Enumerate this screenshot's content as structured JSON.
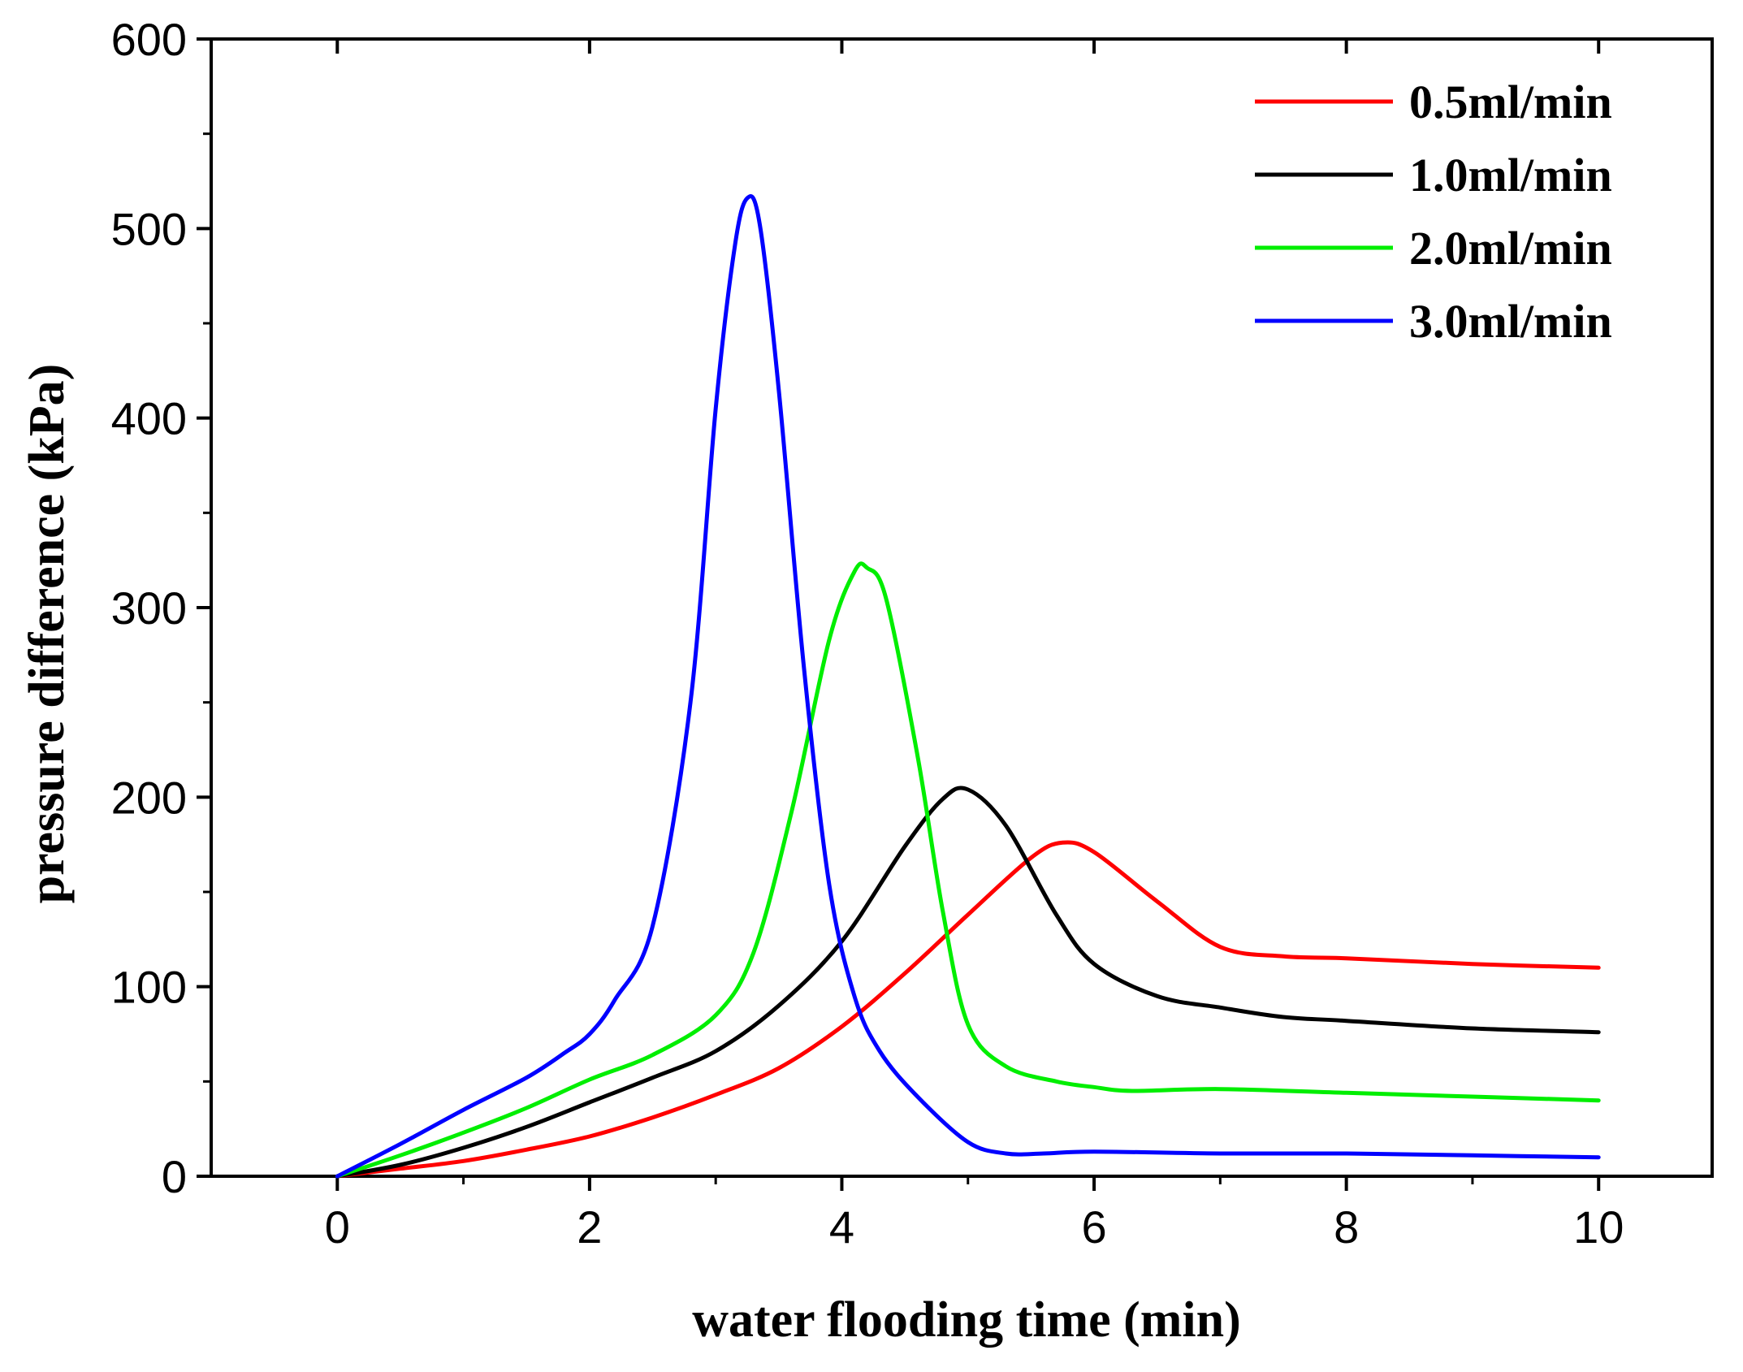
{
  "chart_data": {
    "type": "line",
    "title": "",
    "xlabel": "water flooding time (min)",
    "ylabel": "pressure difference (kPa)",
    "xlim": [
      -1,
      10.9
    ],
    "ylim": [
      0,
      600
    ],
    "xticks": [
      0,
      2,
      4,
      6,
      8,
      10
    ],
    "yticks": [
      0,
      100,
      200,
      300,
      400,
      500,
      600
    ],
    "xtick_labels": [
      "0",
      "2",
      "4",
      "6",
      "8",
      "10"
    ],
    "ytick_labels": [
      "0",
      "100",
      "200",
      "300",
      "400",
      "500",
      "600"
    ],
    "grid": false,
    "legend_position": "top-right",
    "series": [
      {
        "name": "0.5ml/min",
        "color": "#ff0000",
        "x": [
          0,
          0.5,
          1,
          1.5,
          2,
          2.5,
          3,
          3.5,
          4,
          4.5,
          5,
          5.5,
          5.75,
          6,
          6.5,
          7,
          7.5,
          8,
          9,
          10
        ],
        "y": [
          0,
          4,
          8,
          14,
          21,
          31,
          43,
          57,
          79,
          107,
          138,
          168,
          176,
          171,
          145,
          121,
          116,
          115,
          112,
          110
        ]
      },
      {
        "name": "1.0ml/min",
        "color": "#000000",
        "x": [
          0,
          0.5,
          1,
          1.5,
          2,
          2.5,
          3,
          3.5,
          4,
          4.5,
          4.8,
          5,
          5.3,
          5.7,
          6,
          6.5,
          7,
          7.5,
          8,
          9,
          10
        ],
        "y": [
          0,
          6,
          15,
          26,
          39,
          52,
          66,
          90,
          124,
          174,
          199,
          204,
          185,
          138,
          112,
          95,
          89,
          84,
          82,
          78,
          76
        ]
      },
      {
        "name": "2.0ml/min",
        "color": "#00ee00",
        "x": [
          0,
          0.5,
          1,
          1.5,
          2,
          2.5,
          3,
          3.3,
          3.6,
          3.9,
          4.1,
          4.2,
          4.35,
          4.6,
          4.8,
          5,
          5.3,
          5.7,
          6,
          6.3,
          7,
          8,
          9,
          10
        ],
        "y": [
          0,
          11,
          23,
          36,
          51,
          64,
          85,
          118,
          192,
          283,
          319,
          321,
          305,
          222,
          140,
          80,
          58,
          50,
          47,
          45,
          46,
          44,
          42,
          40
        ]
      },
      {
        "name": "3.0ml/min",
        "color": "#0000ff",
        "x": [
          0,
          0.5,
          1,
          1.5,
          1.8,
          2,
          2.2,
          2.5,
          2.8,
          3.0,
          3.15,
          3.25,
          3.35,
          3.5,
          3.7,
          3.9,
          4.1,
          4.3,
          4.6,
          5,
          5.3,
          5.6,
          6,
          7,
          8,
          9,
          10
        ],
        "y": [
          0,
          17,
          35,
          52,
          65,
          75,
          93,
          132,
          250,
          405,
          490,
          516,
          502,
          415,
          268,
          154,
          95,
          66,
          42,
          18,
          12,
          12,
          13,
          12,
          12,
          11,
          10
        ]
      }
    ]
  }
}
